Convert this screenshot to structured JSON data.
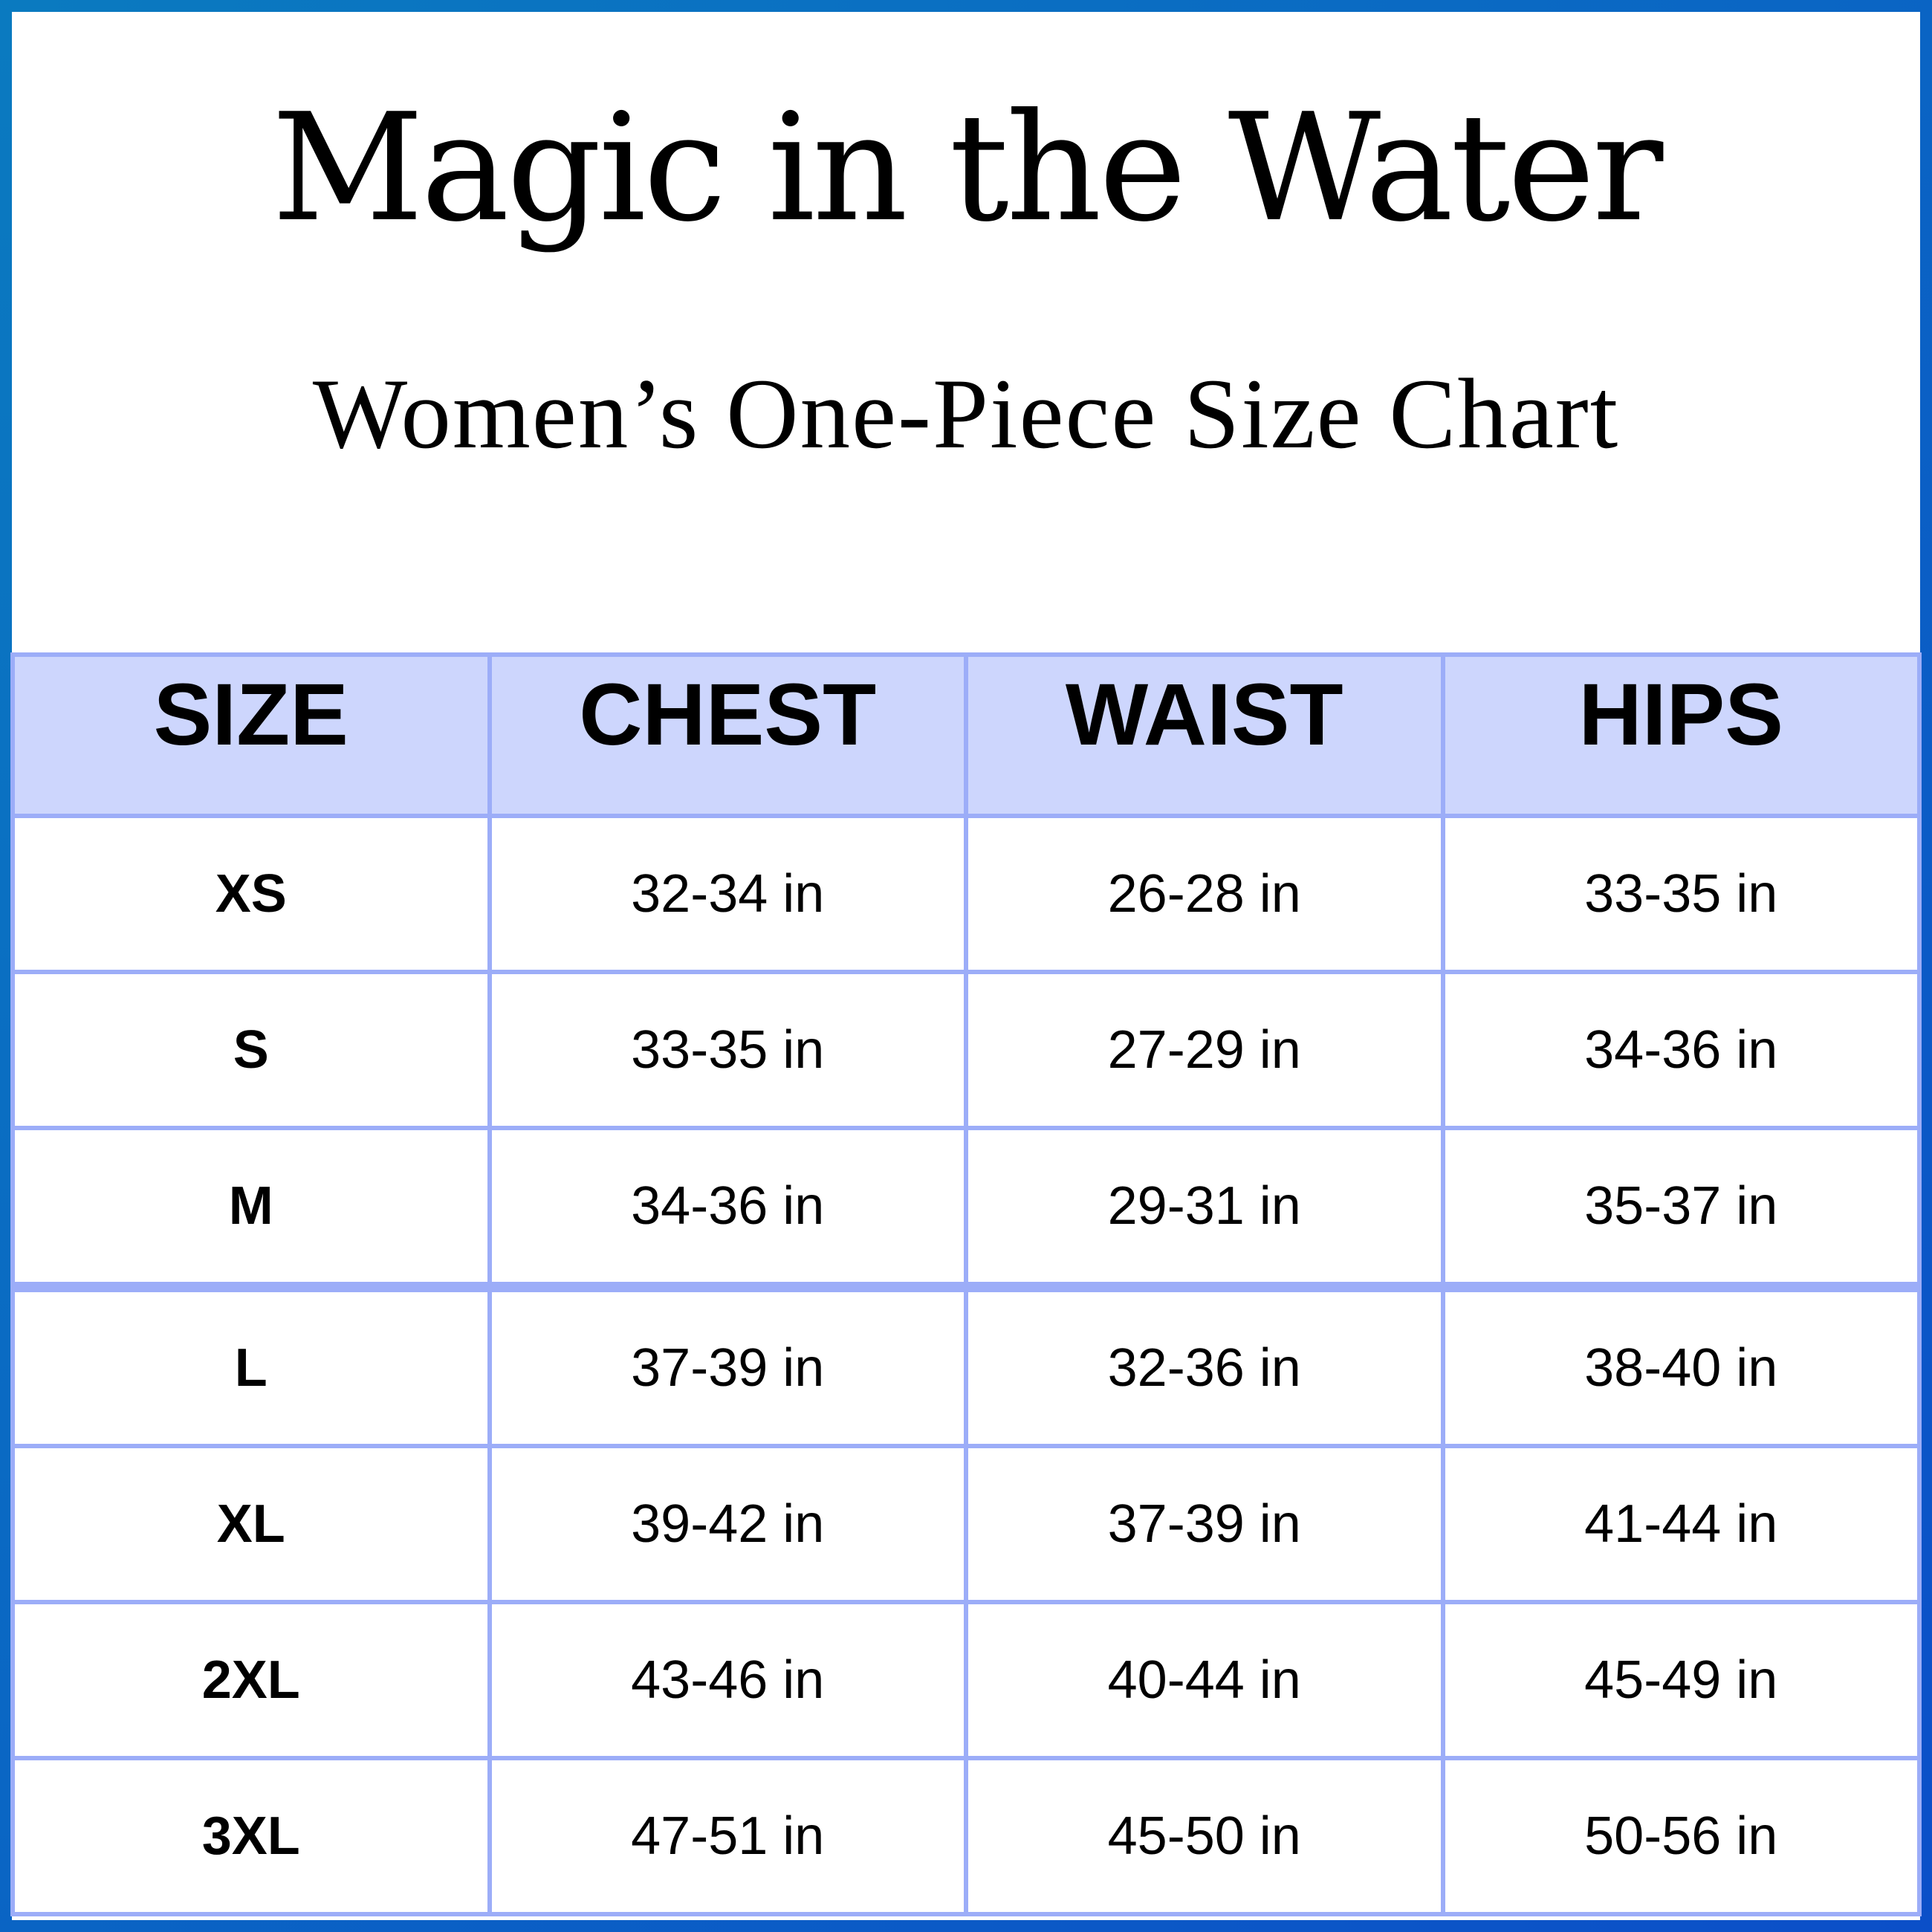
{
  "brand": "Magic in the Water",
  "subtitle": "Women’s One-Piece Size Chart",
  "colors": {
    "border": "#0a6fc0",
    "header_bg": "#cdd6fd",
    "grid": "#9cadf8"
  },
  "table": {
    "headers": [
      "SIZE",
      "CHEST",
      "WAIST",
      "HIPS"
    ],
    "rows": [
      [
        "XS",
        "32-34 in",
        "26-28 in",
        "33-35 in"
      ],
      [
        "S",
        "33-35 in",
        "27-29 in",
        "34-36 in"
      ],
      [
        "M",
        "34-36 in",
        "29-31 in",
        "35-37 in"
      ],
      [
        "L",
        "37-39 in",
        "32-36 in",
        "38-40 in"
      ],
      [
        "XL",
        "39-42 in",
        "37-39 in",
        "41-44 in"
      ],
      [
        "2XL",
        "43-46 in",
        "40-44 in",
        "45-49 in"
      ],
      [
        "3XL",
        "47-51 in",
        "45-50 in",
        "50-56 in"
      ]
    ]
  }
}
